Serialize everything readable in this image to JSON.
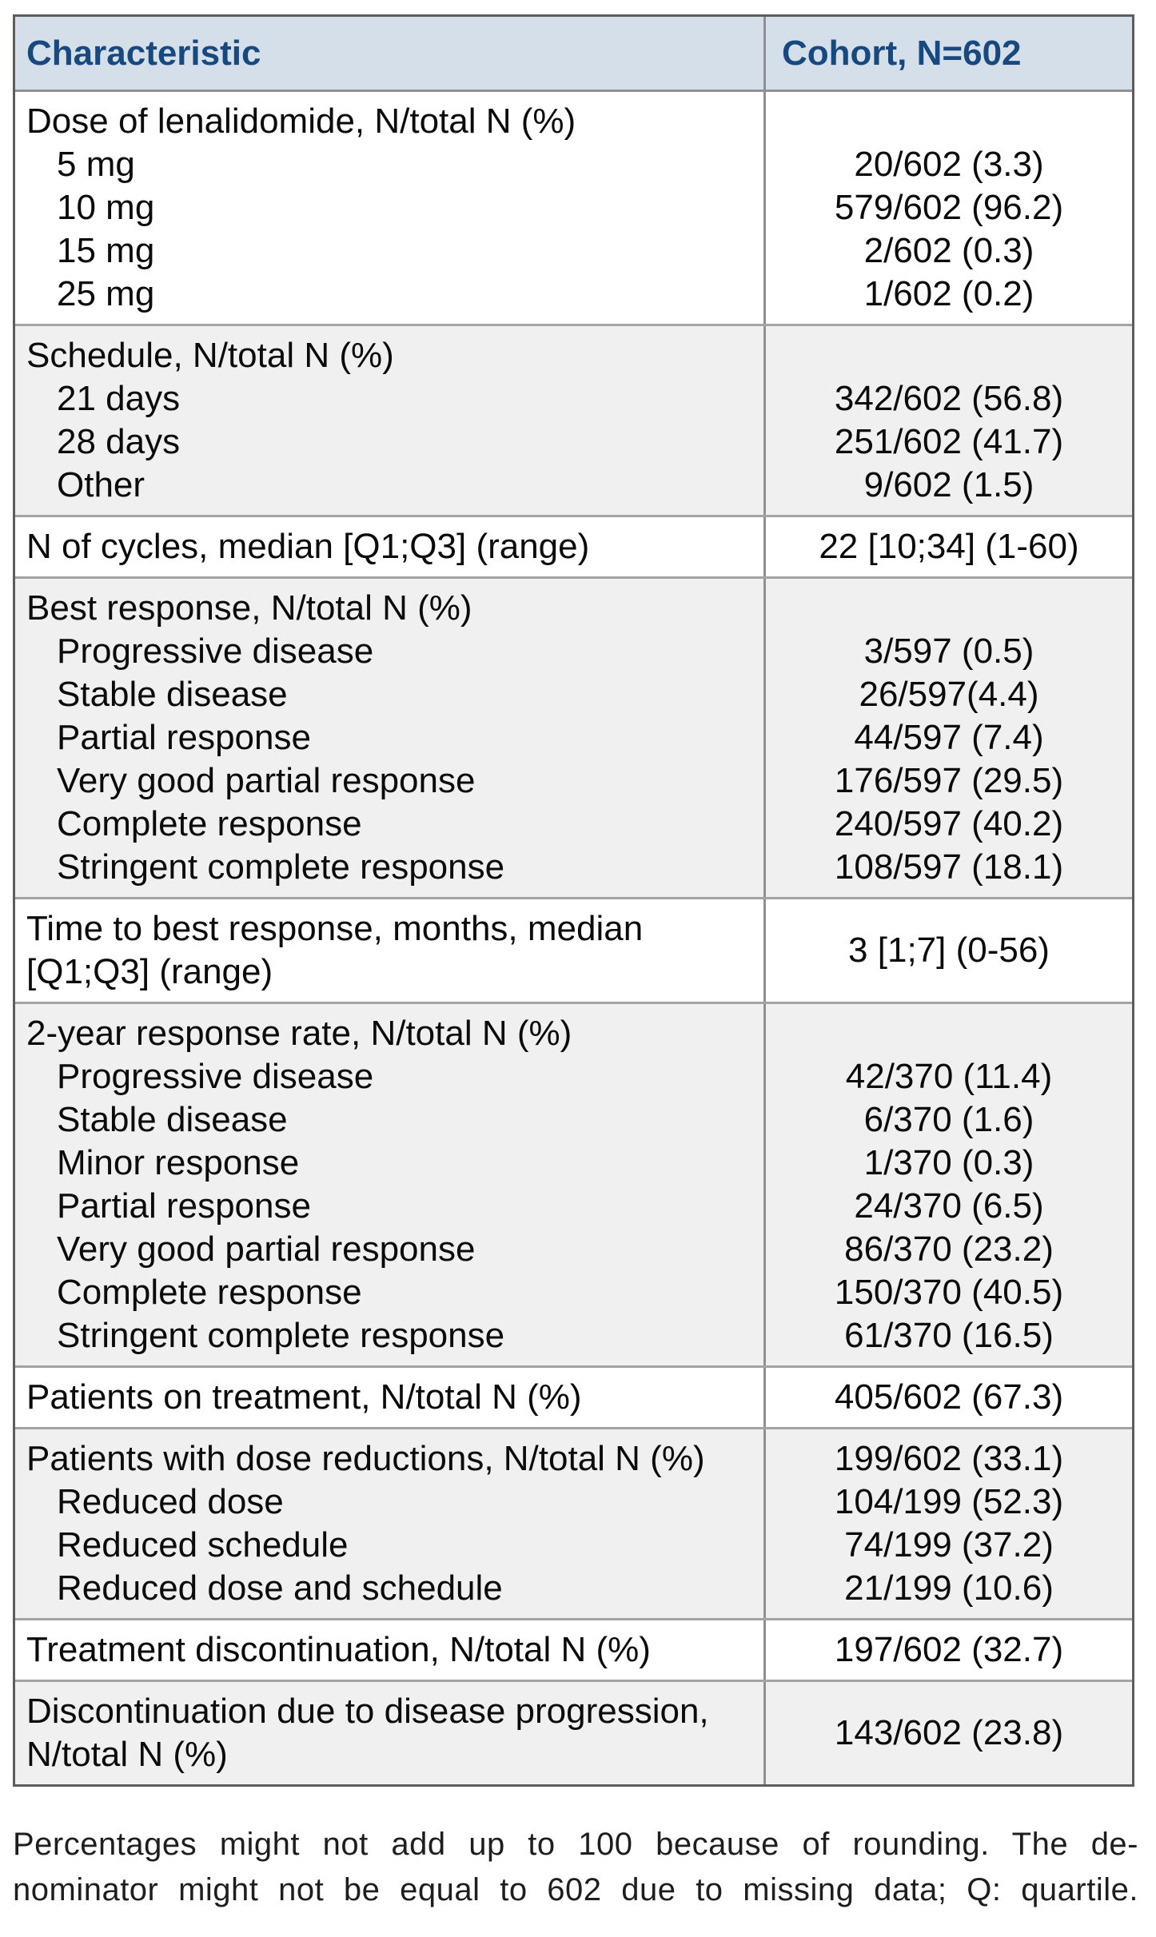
{
  "header": {
    "col1": "Characteristic",
    "col2": "Cohort, N=602"
  },
  "colors": {
    "header_bg": "#d5dfe9",
    "header_text": "#17497f",
    "alt_row_bg": "#f0f0f0",
    "border_outer": "#5d5d5d",
    "border_inner": "#a3a3a3"
  },
  "groups": [
    {
      "label": "Dose of lenalidomide, N/total N (%)",
      "rows": [
        {
          "label": "5 mg",
          "value": "20/602 (3.3)"
        },
        {
          "label": "10 mg",
          "value": "579/602 (96.2)"
        },
        {
          "label": "15 mg",
          "value": "2/602 (0.3)"
        },
        {
          "label": "25 mg",
          "value": "1/602 (0.2)"
        }
      ]
    },
    {
      "label": "Schedule, N/total N (%)",
      "rows": [
        {
          "label": "21 days",
          "value": "342/602 (56.8)"
        },
        {
          "label": "28 days",
          "value": "251/602 (41.7)"
        },
        {
          "label": "Other",
          "value": "9/602 (1.5)"
        }
      ]
    },
    {
      "label": "N of cycles, median [Q1;Q3] (range)",
      "value": "22 [10;34] (1-60)"
    },
    {
      "label": "Best response, N/total N (%)",
      "rows": [
        {
          "label": "Progressive disease",
          "value": "3/597 (0.5)"
        },
        {
          "label": "Stable disease",
          "value": "26/597(4.4)"
        },
        {
          "label": "Partial response",
          "value": "44/597 (7.4)"
        },
        {
          "label": "Very good partial response",
          "value": "176/597 (29.5)"
        },
        {
          "label": "Complete response",
          "value": "240/597 (40.2)"
        },
        {
          "label": "Stringent complete response",
          "value": "108/597 (18.1)"
        }
      ]
    },
    {
      "label_line1": "Time to best response, months, median",
      "label_line2": "[Q1;Q3] (range)",
      "value": "3 [1;7] (0-56)"
    },
    {
      "label": "2-year response rate, N/total N (%)",
      "rows": [
        {
          "label": "Progressive disease",
          "value": "42/370 (11.4)"
        },
        {
          "label": "Stable disease",
          "value": "6/370 (1.6)"
        },
        {
          "label": "Minor response",
          "value": "1/370 (0.3)"
        },
        {
          "label": "Partial response",
          "value": "24/370 (6.5)"
        },
        {
          "label": "Very good partial response",
          "value": "86/370 (23.2)"
        },
        {
          "label": "Complete response",
          "value": "150/370 (40.5)"
        },
        {
          "label": "Stringent complete response",
          "value": "61/370 (16.5)"
        }
      ]
    },
    {
      "label": "Patients on treatment, N/total N (%)",
      "value": "405/602 (67.3)"
    },
    {
      "label": "Patients with dose reductions, N/total N (%)",
      "value": "199/602 (33.1)",
      "rows": [
        {
          "label": "Reduced dose",
          "value": "104/199 (52.3)"
        },
        {
          "label": "Reduced schedule",
          "value": "74/199 (37.2)"
        },
        {
          "label": "Reduced dose and schedule",
          "value": "21/199 (10.6)"
        }
      ]
    },
    {
      "label": "Treatment discontinuation, N/total N (%)",
      "value": "197/602 (32.7)"
    },
    {
      "label_line1": "Discontinuation due to disease progression,",
      "label_line2": "N/total N (%)",
      "value": "143/602 (23.8)"
    }
  ],
  "footnote": {
    "line1": "Percentages might not add up to 100 because of rounding. The de-",
    "line2": "nominator might not be equal to 602 due to missing data; Q: quartile."
  }
}
